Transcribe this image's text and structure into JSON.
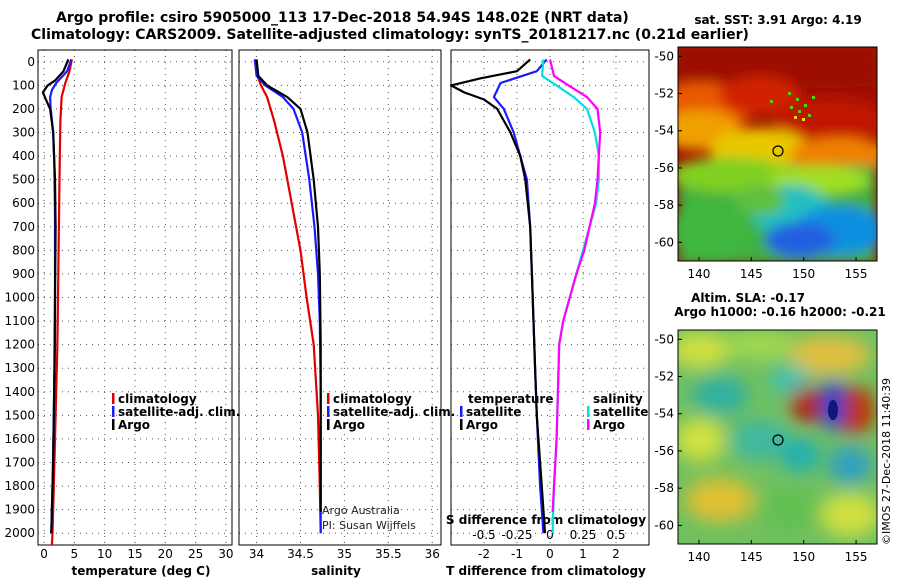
{
  "header": {
    "line1": "Argo profile: csiro 5905000_113 17-Dec-2018 54.94S 148.02E (NRT data)",
    "line2": "Climatology: CARS2009. Satellite-adjusted climatology: synTS_20181217.nc (0.21d earlier)"
  },
  "colors": {
    "climatology": "#e00000",
    "satellite": "#1a1aff",
    "argo": "#000000",
    "sat_salinity": "#00e0e0",
    "argo_salinity": "#ff00ff"
  },
  "credit": [
    "Argo Australia",
    "PI: Susan Wijffels"
  ],
  "stamp": "©IMOS 27-Dec-2018 11:40:39",
  "chart_data": [
    {
      "type": "line",
      "title": "",
      "xlabel": "temperature (deg C)",
      "ylabel": "",
      "xlim": [
        -1,
        31
      ],
      "ylim": [
        2050,
        -50
      ],
      "x_ticks": [
        0,
        5,
        10,
        15,
        20,
        25,
        30
      ],
      "y_ticks": [
        0,
        100,
        200,
        300,
        400,
        500,
        600,
        700,
        800,
        900,
        1000,
        1100,
        1200,
        1300,
        1400,
        1500,
        1600,
        1700,
        1800,
        1900,
        2000
      ],
      "legend": [
        "climatology",
        "satellite-adj. clim.",
        "Argo"
      ],
      "legend_position": "lower-right",
      "series": [
        {
          "name": "climatology",
          "color_key": "climatology",
          "points": [
            [
              4.6,
              -10
            ],
            [
              4.2,
              40
            ],
            [
              3.5,
              90
            ],
            [
              2.9,
              150
            ],
            [
              2.7,
              250
            ],
            [
              2.6,
              400
            ],
            [
              2.5,
              600
            ],
            [
              2.4,
              800
            ],
            [
              2.3,
              1000
            ],
            [
              2.2,
              1200
            ],
            [
              2.0,
              1400
            ],
            [
              1.8,
              1600
            ],
            [
              1.6,
              1800
            ],
            [
              1.4,
              2000
            ],
            [
              1.3,
              2050
            ]
          ]
        },
        {
          "name": "satellite-adj. clim.",
          "color_key": "satellite",
          "points": [
            [
              4.5,
              -10
            ],
            [
              3.8,
              40
            ],
            [
              2.0,
              90
            ],
            [
              1.3,
              120
            ],
            [
              1.0,
              150
            ],
            [
              1.1,
              200
            ],
            [
              1.5,
              300
            ],
            [
              1.7,
              450
            ],
            [
              1.8,
              650
            ],
            [
              1.8,
              900
            ],
            [
              1.8,
              1200
            ],
            [
              1.6,
              1500
            ],
            [
              1.4,
              1800
            ],
            [
              1.2,
              2000
            ]
          ]
        },
        {
          "name": "Argo",
          "color_key": "argo",
          "points": [
            [
              4.0,
              -10
            ],
            [
              3.2,
              40
            ],
            [
              1.8,
              80
            ],
            [
              0.6,
              100
            ],
            [
              -0.2,
              130
            ],
            [
              0.3,
              160
            ],
            [
              1.0,
              200
            ],
            [
              1.5,
              300
            ],
            [
              1.8,
              500
            ],
            [
              1.9,
              700
            ],
            [
              1.8,
              1000
            ],
            [
              1.7,
              1300
            ],
            [
              1.6,
              1500
            ],
            [
              1.5,
              1700
            ],
            [
              1.3,
              1900
            ],
            [
              1.2,
              2000
            ]
          ]
        }
      ]
    },
    {
      "type": "line",
      "title": "",
      "xlabel": "salinity",
      "ylabel": "",
      "xlim": [
        33.8,
        36.1
      ],
      "ylim": [
        2050,
        -50
      ],
      "x_ticks": [
        34,
        34.5,
        35,
        35.5,
        36
      ],
      "legend": [
        "climatology",
        "satellite-adj. clim.",
        "Argo"
      ],
      "legend_position": "lower-right",
      "series": [
        {
          "name": "climatology",
          "color_key": "climatology",
          "points": [
            [
              33.98,
              -10
            ],
            [
              34.0,
              50
            ],
            [
              34.05,
              100
            ],
            [
              34.12,
              150
            ],
            [
              34.2,
              250
            ],
            [
              34.3,
              400
            ],
            [
              34.4,
              600
            ],
            [
              34.5,
              800
            ],
            [
              34.57,
              1000
            ],
            [
              34.65,
              1200
            ],
            [
              34.7,
              1500
            ],
            [
              34.72,
              1800
            ],
            [
              34.73,
              2000
            ]
          ]
        },
        {
          "name": "satellite-adj. clim.",
          "color_key": "satellite",
          "points": [
            [
              33.98,
              -10
            ],
            [
              34.0,
              60
            ],
            [
              34.1,
              100
            ],
            [
              34.3,
              150
            ],
            [
              34.42,
              200
            ],
            [
              34.52,
              300
            ],
            [
              34.6,
              500
            ],
            [
              34.66,
              700
            ],
            [
              34.7,
              900
            ],
            [
              34.72,
              1100
            ],
            [
              34.73,
              1400
            ],
            [
              34.73,
              1700
            ],
            [
              34.73,
              2000
            ]
          ]
        },
        {
          "name": "Argo",
          "color_key": "argo",
          "points": [
            [
              34.0,
              -10
            ],
            [
              34.02,
              60
            ],
            [
              34.12,
              100
            ],
            [
              34.35,
              150
            ],
            [
              34.5,
              200
            ],
            [
              34.58,
              300
            ],
            [
              34.65,
              500
            ],
            [
              34.7,
              700
            ],
            [
              34.72,
              900
            ],
            [
              34.73,
              1200
            ],
            [
              34.73,
              1500
            ],
            [
              34.73,
              1800
            ],
            [
              34.73,
              1910
            ]
          ]
        }
      ]
    },
    {
      "type": "line",
      "title": "",
      "xlabel": "T difference from climatology",
      "x2label": "S difference from climatology",
      "ylabel": "",
      "xlim": [
        -3,
        3
      ],
      "x2lim": [
        -0.75,
        0.75
      ],
      "ylim": [
        2050,
        -50
      ],
      "x_ticks": [
        -2,
        -1,
        0,
        1,
        2
      ],
      "x2_ticks": [
        -0.5,
        -0.25,
        0,
        0.25,
        0.5
      ],
      "x2_tick_labels": [
        "-0.5",
        "-0.25",
        "0",
        "0.25",
        "0.5"
      ],
      "legend_left": {
        "heading": "temperature",
        "items": [
          "satellite",
          "Argo"
        ]
      },
      "legend_right": {
        "heading": "salinity",
        "items": [
          "satellite",
          "Argo"
        ]
      },
      "legend_position": "lower-center",
      "series": [
        {
          "name": "temperature satellite",
          "color_key": "satellite",
          "axis": "x",
          "points": [
            [
              -0.1,
              -10
            ],
            [
              -0.4,
              40
            ],
            [
              -1.5,
              90
            ],
            [
              -1.6,
              120
            ],
            [
              -1.7,
              150
            ],
            [
              -1.4,
              200
            ],
            [
              -1.1,
              300
            ],
            [
              -0.9,
              400
            ],
            [
              -0.7,
              500
            ],
            [
              -0.6,
              700
            ],
            [
              -0.55,
              900
            ],
            [
              -0.5,
              1100
            ],
            [
              -0.45,
              1300
            ],
            [
              -0.4,
              1500
            ],
            [
              -0.3,
              1800
            ],
            [
              -0.2,
              2000
            ]
          ]
        },
        {
          "name": "temperature Argo",
          "color_key": "argo",
          "axis": "x",
          "points": [
            [
              -0.6,
              -10
            ],
            [
              -1.0,
              40
            ],
            [
              -2.1,
              70
            ],
            [
              -3.0,
              100
            ],
            [
              -2.6,
              130
            ],
            [
              -2.0,
              160
            ],
            [
              -1.6,
              200
            ],
            [
              -1.2,
              300
            ],
            [
              -0.9,
              400
            ],
            [
              -0.75,
              500
            ],
            [
              -0.6,
              700
            ],
            [
              -0.55,
              900
            ],
            [
              -0.5,
              1100
            ],
            [
              -0.45,
              1300
            ],
            [
              -0.4,
              1500
            ],
            [
              -0.3,
              1700
            ],
            [
              -0.2,
              1900
            ],
            [
              -0.15,
              2000
            ]
          ]
        },
        {
          "name": "salinity satellite",
          "color_key": "sat_salinity",
          "axis": "x2",
          "points": [
            [
              -0.05,
              -10
            ],
            [
              -0.06,
              60
            ],
            [
              0.05,
              100
            ],
            [
              0.18,
              150
            ],
            [
              0.28,
              200
            ],
            [
              0.34,
              300
            ],
            [
              0.37,
              400
            ],
            [
              0.37,
              500
            ],
            [
              0.35,
              600
            ],
            [
              0.3,
              700
            ],
            [
              0.25,
              800
            ],
            [
              0.2,
              900
            ],
            [
              0.15,
              1000
            ],
            [
              0.1,
              1100
            ],
            [
              0.07,
              1200
            ],
            [
              0.06,
              1400
            ],
            [
              0.05,
              1600
            ],
            [
              0.03,
              1800
            ],
            [
              0.02,
              2000
            ]
          ]
        },
        {
          "name": "salinity Argo",
          "color_key": "argo_salinity",
          "axis": "x2",
          "points": [
            [
              0.0,
              -10
            ],
            [
              0.03,
              60
            ],
            [
              0.14,
              100
            ],
            [
              0.28,
              150
            ],
            [
              0.36,
              200
            ],
            [
              0.38,
              300
            ],
            [
              0.37,
              400
            ],
            [
              0.36,
              500
            ],
            [
              0.34,
              600
            ],
            [
              0.3,
              700
            ],
            [
              0.26,
              800
            ],
            [
              0.2,
              900
            ],
            [
              0.15,
              1000
            ],
            [
              0.1,
              1100
            ],
            [
              0.07,
              1200
            ],
            [
              0.06,
              1400
            ],
            [
              0.05,
              1600
            ],
            [
              0.03,
              1800
            ],
            [
              0.02,
              1910
            ]
          ]
        }
      ]
    },
    {
      "type": "heatmap",
      "title": "sat. SST: 3.91 Argo: 4.19",
      "x_ticks": [
        140,
        145,
        150,
        155
      ],
      "y_ticks": [
        -50,
        -52,
        -54,
        -56,
        -58,
        -60
      ],
      "xlim": [
        138,
        157
      ],
      "ylim": [
        -61,
        -49.5
      ],
      "marker": {
        "lon": 148.02,
        "lat": -54.94
      }
    },
    {
      "type": "heatmap",
      "title": [
        "Altim. SLA: -0.17",
        "Argo h1000: -0.16 h2000: -0.21"
      ],
      "x_ticks": [
        140,
        145,
        150,
        155
      ],
      "y_ticks": [
        -50,
        -52,
        -54,
        -56,
        -58,
        -60
      ],
      "xlim": [
        138,
        157
      ],
      "ylim": [
        -61,
        -49.5
      ],
      "marker": {
        "lon": 148.02,
        "lat": -54.94
      }
    }
  ]
}
